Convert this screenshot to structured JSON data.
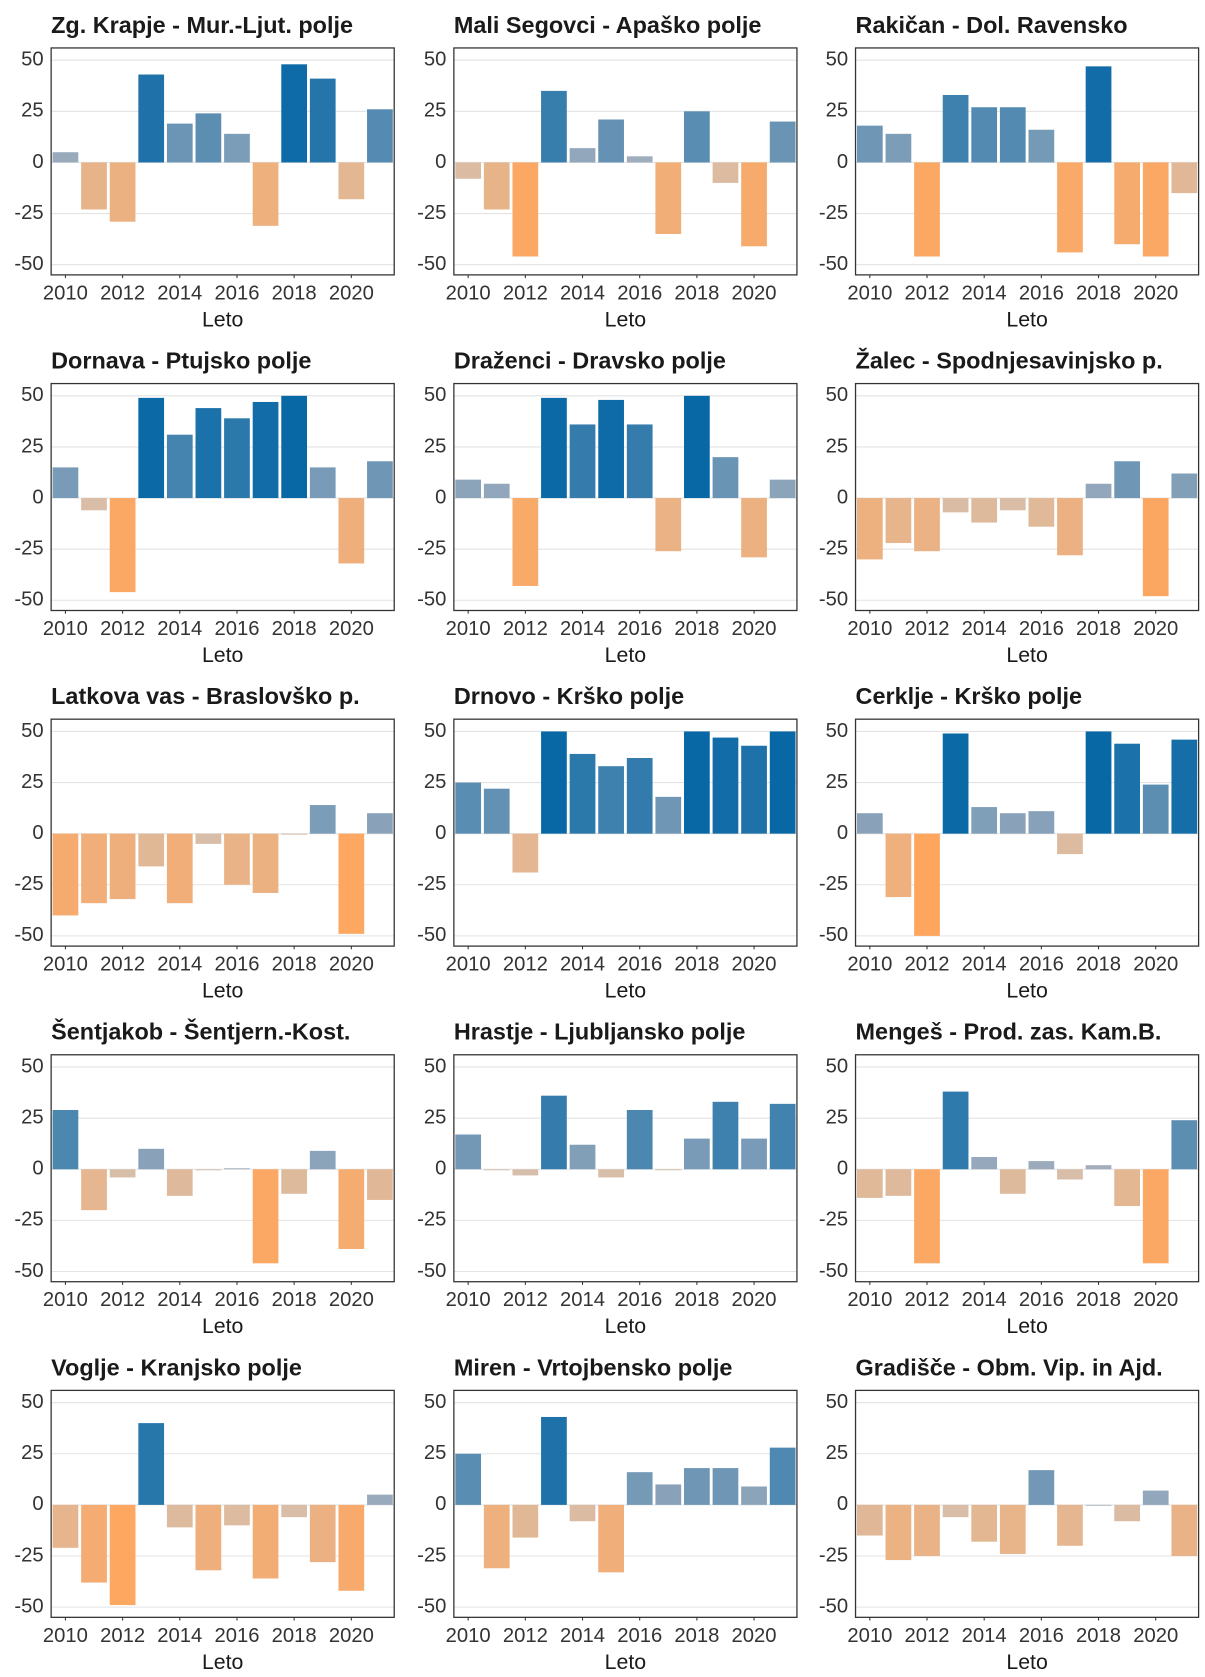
{
  "chart_data": [
    {
      "type": "bar",
      "title": "Zg. Krapje - Mur.-Ljut. polje",
      "x": [
        2010,
        2011,
        2012,
        2013,
        2014,
        2015,
        2016,
        2017,
        2018,
        2019,
        2020,
        2021
      ],
      "values": [
        5,
        -23,
        -29,
        43,
        19,
        24,
        14,
        -31,
        48,
        41,
        -18,
        26
      ],
      "xlabel": "Leto",
      "xlim": [
        2009.5,
        2021.5
      ],
      "ylim": [
        -55,
        56
      ],
      "xticks": [
        2010,
        2012,
        2014,
        2016,
        2018,
        2020
      ],
      "yticks": [
        -50,
        -25,
        0,
        25,
        50
      ],
      "grid": true,
      "color_scale": {
        "domain": [
          -50,
          0,
          0,
          50
        ],
        "colors": [
          "#fea65e",
          "#d4c0b0",
          "#a9b1be",
          "#0868a6"
        ]
      }
    },
    {
      "type": "bar",
      "title": "Mali Segovci - Apaško polje",
      "x": [
        2010,
        2011,
        2012,
        2013,
        2014,
        2015,
        2016,
        2017,
        2018,
        2019,
        2020,
        2021
      ],
      "values": [
        -8,
        -23,
        -46,
        35,
        7,
        21,
        3,
        -35,
        25,
        -10,
        -41,
        20
      ],
      "xlabel": "Leto",
      "xlim": [
        2009.5,
        2021.5
      ],
      "ylim": [
        -55,
        56
      ],
      "xticks": [
        2010,
        2012,
        2014,
        2016,
        2018,
        2020
      ],
      "yticks": [
        -50,
        -25,
        0,
        25,
        50
      ],
      "grid": true,
      "color_scale": {
        "domain": [
          -50,
          0,
          0,
          50
        ],
        "colors": [
          "#fea65e",
          "#d4c0b0",
          "#a9b1be",
          "#0868a6"
        ]
      }
    },
    {
      "type": "bar",
      "title": "Rakičan - Dol. Ravensko",
      "x": [
        2010,
        2011,
        2012,
        2013,
        2014,
        2015,
        2016,
        2017,
        2018,
        2019,
        2020,
        2021
      ],
      "values": [
        18,
        14,
        -46,
        33,
        27,
        27,
        16,
        -44,
        47,
        -40,
        -46,
        -15
      ],
      "xlabel": "Leto",
      "xlim": [
        2009.5,
        2021.5
      ],
      "ylim": [
        -55,
        56
      ],
      "xticks": [
        2010,
        2012,
        2014,
        2016,
        2018,
        2020
      ],
      "yticks": [
        -50,
        -25,
        0,
        25,
        50
      ],
      "grid": true,
      "color_scale": {
        "domain": [
          -50,
          0,
          0,
          50
        ],
        "colors": [
          "#fea65e",
          "#d4c0b0",
          "#a9b1be",
          "#0868a6"
        ]
      }
    },
    {
      "type": "bar",
      "title": "Dornava - Ptujsko polje",
      "x": [
        2010,
        2011,
        2012,
        2013,
        2014,
        2015,
        2016,
        2017,
        2018,
        2019,
        2020,
        2021
      ],
      "values": [
        15,
        -6,
        -46,
        49,
        31,
        44,
        39,
        47,
        50,
        15,
        -32,
        18
      ],
      "xlabel": "Leto",
      "xlim": [
        2009.5,
        2021.5
      ],
      "ylim": [
        -55,
        56
      ],
      "xticks": [
        2010,
        2012,
        2014,
        2016,
        2018,
        2020
      ],
      "yticks": [
        -50,
        -25,
        0,
        25,
        50
      ],
      "grid": true,
      "color_scale": {
        "domain": [
          -50,
          0,
          0,
          50
        ],
        "colors": [
          "#fea65e",
          "#d4c0b0",
          "#a9b1be",
          "#0868a6"
        ]
      }
    },
    {
      "type": "bar",
      "title": "Draženci - Dravsko polje",
      "x": [
        2010,
        2011,
        2012,
        2013,
        2014,
        2015,
        2016,
        2017,
        2018,
        2019,
        2020,
        2021
      ],
      "values": [
        9,
        7,
        -43,
        49,
        36,
        48,
        36,
        -26,
        50,
        20,
        -29,
        9
      ],
      "xlabel": "Leto",
      "xlim": [
        2009.5,
        2021.5
      ],
      "ylim": [
        -55,
        56
      ],
      "xticks": [
        2010,
        2012,
        2014,
        2016,
        2018,
        2020
      ],
      "yticks": [
        -50,
        -25,
        0,
        25,
        50
      ],
      "grid": true,
      "color_scale": {
        "domain": [
          -50,
          0,
          0,
          50
        ],
        "colors": [
          "#fea65e",
          "#d4c0b0",
          "#a9b1be",
          "#0868a6"
        ]
      }
    },
    {
      "type": "bar",
      "title": "Žalec - Spodnjesavinjsko p.",
      "x": [
        2010,
        2011,
        2012,
        2013,
        2014,
        2015,
        2016,
        2017,
        2018,
        2019,
        2020,
        2021
      ],
      "values": [
        -30,
        -22,
        -26,
        -7,
        -12,
        -6,
        -14,
        -28,
        7,
        18,
        -48,
        12
      ],
      "xlabel": "Leto",
      "xlim": [
        2009.5,
        2021.5
      ],
      "ylim": [
        -55,
        56
      ],
      "xticks": [
        2010,
        2012,
        2014,
        2016,
        2018,
        2020
      ],
      "yticks": [
        -50,
        -25,
        0,
        25,
        50
      ],
      "grid": true,
      "color_scale": {
        "domain": [
          -50,
          0,
          0,
          50
        ],
        "colors": [
          "#fea65e",
          "#d4c0b0",
          "#a9b1be",
          "#0868a6"
        ]
      }
    },
    {
      "type": "bar",
      "title": "Latkova vas - Braslovško p.",
      "x": [
        2010,
        2011,
        2012,
        2013,
        2014,
        2015,
        2016,
        2017,
        2018,
        2019,
        2020,
        2021
      ],
      "values": [
        -40,
        -34,
        -32,
        -16,
        -34,
        -5,
        -25,
        -29,
        -0.5,
        14,
        -49,
        10
      ],
      "xlabel": "Leto",
      "xlim": [
        2009.5,
        2021.5
      ],
      "ylim": [
        -55,
        56
      ],
      "xticks": [
        2010,
        2012,
        2014,
        2016,
        2018,
        2020
      ],
      "yticks": [
        -50,
        -25,
        0,
        25,
        50
      ],
      "grid": true,
      "color_scale": {
        "domain": [
          -50,
          0,
          0,
          50
        ],
        "colors": [
          "#fea65e",
          "#d4c0b0",
          "#a9b1be",
          "#0868a6"
        ]
      }
    },
    {
      "type": "bar",
      "title": "Drnovo - Krško polje",
      "x": [
        2010,
        2011,
        2012,
        2013,
        2014,
        2015,
        2016,
        2017,
        2018,
        2019,
        2020,
        2021
      ],
      "values": [
        25,
        22,
        -19,
        50,
        39,
        33,
        37,
        18,
        50,
        47,
        43,
        50
      ],
      "xlabel": "Leto",
      "xlim": [
        2009.5,
        2021.5
      ],
      "ylim": [
        -55,
        56
      ],
      "xticks": [
        2010,
        2012,
        2014,
        2016,
        2018,
        2020
      ],
      "yticks": [
        -50,
        -25,
        0,
        25,
        50
      ],
      "grid": true,
      "color_scale": {
        "domain": [
          -50,
          0,
          0,
          50
        ],
        "colors": [
          "#fea65e",
          "#d4c0b0",
          "#a9b1be",
          "#0868a6"
        ]
      }
    },
    {
      "type": "bar",
      "title": "Cerklje - Krško polje",
      "x": [
        2010,
        2011,
        2012,
        2013,
        2014,
        2015,
        2016,
        2017,
        2018,
        2019,
        2020,
        2021
      ],
      "values": [
        10,
        -31,
        -50,
        49,
        13,
        10,
        11,
        -10,
        50,
        44,
        24,
        46
      ],
      "xlabel": "Leto",
      "xlim": [
        2009.5,
        2021.5
      ],
      "ylim": [
        -55,
        56
      ],
      "xticks": [
        2010,
        2012,
        2014,
        2016,
        2018,
        2020
      ],
      "yticks": [
        -50,
        -25,
        0,
        25,
        50
      ],
      "grid": true,
      "color_scale": {
        "domain": [
          -50,
          0,
          0,
          50
        ],
        "colors": [
          "#fea65e",
          "#d4c0b0",
          "#a9b1be",
          "#0868a6"
        ]
      }
    },
    {
      "type": "bar",
      "title": "Šentjakob - Šentjern.-Kost.",
      "x": [
        2010,
        2011,
        2012,
        2013,
        2014,
        2015,
        2016,
        2017,
        2018,
        2019,
        2020,
        2021
      ],
      "values": [
        29,
        -20,
        -4,
        10,
        -13,
        -0.5,
        0.5,
        -46,
        -12,
        9,
        -39,
        -15
      ],
      "xlabel": "Leto",
      "xlim": [
        2009.5,
        2021.5
      ],
      "ylim": [
        -55,
        56
      ],
      "xticks": [
        2010,
        2012,
        2014,
        2016,
        2018,
        2020
      ],
      "yticks": [
        -50,
        -25,
        0,
        25,
        50
      ],
      "grid": true,
      "color_scale": {
        "domain": [
          -50,
          0,
          0,
          50
        ],
        "colors": [
          "#fea65e",
          "#d4c0b0",
          "#a9b1be",
          "#0868a6"
        ]
      }
    },
    {
      "type": "bar",
      "title": "Hrastje - Ljubljansko polje",
      "x": [
        2010,
        2011,
        2012,
        2013,
        2014,
        2015,
        2016,
        2017,
        2018,
        2019,
        2020,
        2021
      ],
      "values": [
        17,
        -0.5,
        -3,
        36,
        12,
        -4,
        29,
        -0.5,
        15,
        33,
        15,
        32
      ],
      "xlabel": "Leto",
      "xlim": [
        2009.5,
        2021.5
      ],
      "ylim": [
        -55,
        56
      ],
      "xticks": [
        2010,
        2012,
        2014,
        2016,
        2018,
        2020
      ],
      "yticks": [
        -50,
        -25,
        0,
        25,
        50
      ],
      "grid": true,
      "color_scale": {
        "domain": [
          -50,
          0,
          0,
          50
        ],
        "colors": [
          "#fea65e",
          "#d4c0b0",
          "#a9b1be",
          "#0868a6"
        ]
      }
    },
    {
      "type": "bar",
      "title": "Mengeš - Prod. zas. Kam.B.",
      "x": [
        2010,
        2011,
        2012,
        2013,
        2014,
        2015,
        2016,
        2017,
        2018,
        2019,
        2020,
        2021
      ],
      "values": [
        -14,
        -13,
        -46,
        38,
        6,
        -12,
        4,
        -5,
        2,
        -18,
        -46,
        24
      ],
      "xlabel": "Leto",
      "xlim": [
        2009.5,
        2021.5
      ],
      "ylim": [
        -55,
        56
      ],
      "xticks": [
        2010,
        2012,
        2014,
        2016,
        2018,
        2020
      ],
      "yticks": [
        -50,
        -25,
        0,
        25,
        50
      ],
      "grid": true,
      "color_scale": {
        "domain": [
          -50,
          0,
          0,
          50
        ],
        "colors": [
          "#fea65e",
          "#d4c0b0",
          "#a9b1be",
          "#0868a6"
        ]
      }
    },
    {
      "type": "bar",
      "title": "Voglje - Kranjsko polje",
      "x": [
        2010,
        2011,
        2012,
        2013,
        2014,
        2015,
        2016,
        2017,
        2018,
        2019,
        2020,
        2021
      ],
      "values": [
        -21,
        -38,
        -49,
        40,
        -11,
        -32,
        -10,
        -36,
        -6,
        -28,
        -42,
        5
      ],
      "xlabel": "Leto",
      "xlim": [
        2009.5,
        2021.5
      ],
      "ylim": [
        -55,
        56
      ],
      "xticks": [
        2010,
        2012,
        2014,
        2016,
        2018,
        2020
      ],
      "yticks": [
        -50,
        -25,
        0,
        25,
        50
      ],
      "grid": true,
      "color_scale": {
        "domain": [
          -50,
          0,
          0,
          50
        ],
        "colors": [
          "#fea65e",
          "#d4c0b0",
          "#a9b1be",
          "#0868a6"
        ]
      }
    },
    {
      "type": "bar",
      "title": "Miren - Vrtojbensko polje",
      "x": [
        2010,
        2011,
        2012,
        2013,
        2014,
        2015,
        2016,
        2017,
        2018,
        2019,
        2020,
        2021
      ],
      "values": [
        25,
        -31,
        -16,
        43,
        -8,
        -33,
        16,
        10,
        18,
        18,
        9,
        28
      ],
      "xlabel": "Leto",
      "xlim": [
        2009.5,
        2021.5
      ],
      "ylim": [
        -55,
        56
      ],
      "xticks": [
        2010,
        2012,
        2014,
        2016,
        2018,
        2020
      ],
      "yticks": [
        -50,
        -25,
        0,
        25,
        50
      ],
      "grid": true,
      "color_scale": {
        "domain": [
          -50,
          0,
          0,
          50
        ],
        "colors": [
          "#fea65e",
          "#d4c0b0",
          "#a9b1be",
          "#0868a6"
        ]
      }
    },
    {
      "type": "bar",
      "title": "Gradišče - Obm. Vip. in Ajd.",
      "x": [
        2010,
        2011,
        2012,
        2013,
        2014,
        2015,
        2016,
        2017,
        2018,
        2019,
        2020,
        2021
      ],
      "values": [
        -15,
        -27,
        -25,
        -6,
        -18,
        -24,
        17,
        -20,
        0,
        -8,
        7,
        -25
      ],
      "xlabel": "Leto",
      "xlim": [
        2009.5,
        2021.5
      ],
      "ylim": [
        -55,
        56
      ],
      "xticks": [
        2010,
        2012,
        2014,
        2016,
        2018,
        2020
      ],
      "yticks": [
        -50,
        -25,
        0,
        25,
        50
      ],
      "grid": true,
      "color_scale": {
        "domain": [
          -50,
          0,
          0,
          50
        ],
        "colors": [
          "#fea65e",
          "#d4c0b0",
          "#a9b1be",
          "#0868a6"
        ]
      }
    }
  ]
}
